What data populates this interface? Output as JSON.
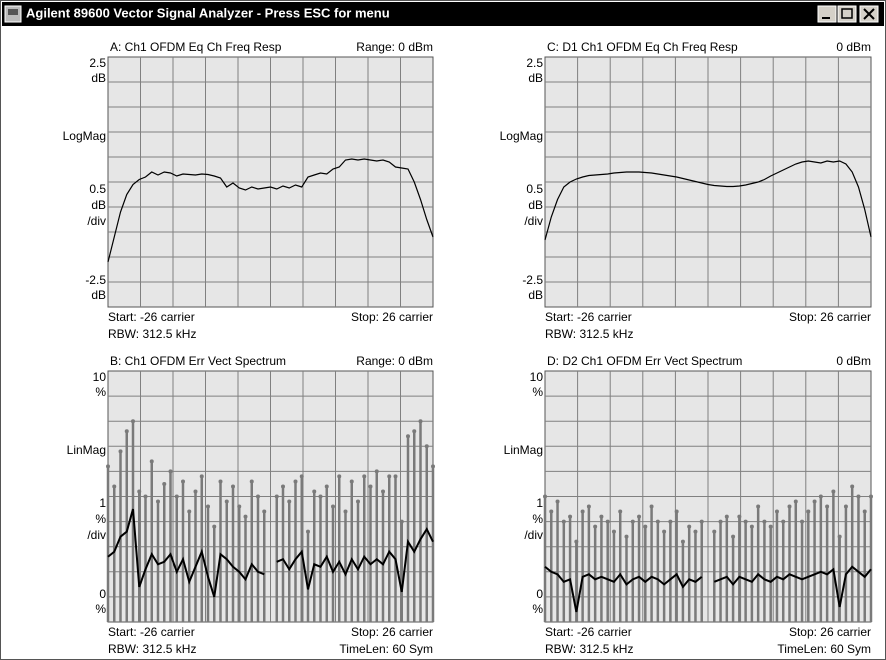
{
  "window": {
    "title": "Agilent 89600 Vector Signal Analyzer - Press ESC for menu"
  },
  "panels": [
    {
      "title": "A: Ch1 OFDM Eq Ch Freq Resp",
      "range": "Range: 0 dBm",
      "y_top": [
        "2.5",
        "dB"
      ],
      "y_format": "LogMag",
      "y_scale": [
        "0.5",
        "dB",
        "/div"
      ],
      "y_bottom": [
        "-2.5",
        "dB"
      ],
      "start": "Start: -26  carrier",
      "stop": "Stop: 26  carrier",
      "rbw": "RBW: 312.5 kHz",
      "xlim": [
        -26,
        26
      ],
      "ylim": [
        -2.5,
        2.5
      ],
      "trace": [
        -1.6,
        -1.1,
        -0.6,
        -0.25,
        -0.05,
        0.05,
        0.1,
        0.2,
        0.14,
        0.2,
        0.18,
        0.12,
        0.16,
        0.15,
        0.14,
        0.16,
        0.15,
        0.12,
        0.08,
        -0.1,
        -0.02,
        -0.12,
        -0.16,
        -0.1,
        -0.14,
        -0.12,
        -0.1,
        -0.14,
        -0.08,
        -0.12,
        -0.06,
        -0.1,
        0.1,
        0.14,
        0.18,
        0.16,
        0.26,
        0.3,
        0.44,
        0.46,
        0.44,
        0.46,
        0.44,
        0.42,
        0.44,
        0.4,
        0.3,
        0.28,
        0.26,
        0.0,
        -0.35,
        -0.75,
        -1.1
      ]
    },
    {
      "title": "C: D1 Ch1 OFDM Eq Ch Freq Resp",
      "range": "0 dBm",
      "y_top": [
        "2.5",
        "dB"
      ],
      "y_format": "LogMag",
      "y_scale": [
        "0.5",
        "dB",
        "/div"
      ],
      "y_bottom": [
        "-2.5",
        "dB"
      ],
      "start": "Start: -26  carrier",
      "stop": "Stop: 26  carrier",
      "rbw": "RBW: 312.5 kHz",
      "xlim": [
        -26,
        26
      ],
      "ylim": [
        -2.5,
        2.5
      ],
      "trace": [
        -1.16,
        -0.7,
        -0.35,
        -0.1,
        0.0,
        0.06,
        0.1,
        0.13,
        0.14,
        0.15,
        0.16,
        0.18,
        0.19,
        0.2,
        0.2,
        0.2,
        0.19,
        0.18,
        0.16,
        0.14,
        0.12,
        0.1,
        0.07,
        0.04,
        0.01,
        -0.02,
        -0.05,
        -0.07,
        -0.08,
        -0.09,
        -0.09,
        -0.08,
        -0.06,
        -0.03,
        0.0,
        0.05,
        0.12,
        0.18,
        0.24,
        0.3,
        0.36,
        0.4,
        0.42,
        0.4,
        0.38,
        0.42,
        0.4,
        0.42,
        0.36,
        0.2,
        -0.1,
        -0.55,
        -1.1
      ]
    },
    {
      "title": "B: Ch1 OFDM Err Vect Spectrum",
      "range": "Range: 0 dBm",
      "y_top": [
        "10",
        "%"
      ],
      "y_format": "LinMag",
      "y_scale": [
        "1",
        "%",
        "/div"
      ],
      "y_bottom": [
        "0",
        "%"
      ],
      "start": "Start: -26  carrier",
      "stop": "Stop: 26  carrier",
      "rbw": "RBW: 312.5 kHz",
      "timelen": "TimeLen: 60  Sym",
      "xlim": [
        -26,
        26
      ],
      "ylim": [
        0,
        10
      ],
      "trace": [
        2.6,
        2.8,
        3.4,
        3.6,
        4.5,
        1.4,
        2.1,
        2.7,
        2.3,
        2.4,
        2.7,
        2.0,
        2.5,
        1.6,
        2.2,
        2.8,
        1.8,
        1.0,
        2.7,
        2.5,
        2.2,
        2.0,
        1.7,
        2.3,
        2.0,
        1.9,
        null,
        2.4,
        2.5,
        2.1,
        2.5,
        2.8,
        1.3,
        2.3,
        2.2,
        2.6,
        2.0,
        2.4,
        1.9,
        2.5,
        2.1,
        2.6,
        2.3,
        2.5,
        2.3,
        2.8,
        2.5,
        1.2,
        3.2,
        2.8,
        3.3,
        3.7,
        3.2
      ],
      "peak": [
        6.2,
        5.4,
        6.8,
        7.6,
        8.0,
        5.2,
        5.0,
        6.4,
        4.8,
        5.5,
        6.0,
        5.0,
        5.6,
        4.4,
        5.2,
        5.8,
        4.6,
        3.8,
        5.6,
        4.8,
        5.4,
        4.6,
        4.2,
        5.6,
        5.0,
        4.4,
        null,
        5.0,
        5.4,
        4.8,
        5.6,
        5.8,
        3.6,
        5.2,
        5.0,
        5.4,
        4.6,
        5.8,
        4.4,
        5.6,
        4.8,
        5.8,
        5.4,
        6.0,
        5.2,
        5.8,
        5.8,
        4.0,
        7.4,
        7.6,
        8.0,
        7.0,
        6.2
      ]
    },
    {
      "title": "D: D2 Ch1 OFDM Err Vect Spectrum",
      "range": "0 dBm",
      "y_top": [
        "10",
        "%"
      ],
      "y_format": "LinMag",
      "y_scale": [
        "1",
        "%",
        "/div"
      ],
      "y_bottom": [
        "0",
        "%"
      ],
      "start": "Start: -26  carrier",
      "stop": "Stop: 26  carrier",
      "rbw": "RBW: 312.5 kHz",
      "timelen": "TimeLen: 60  Sym",
      "xlim": [
        -26,
        26
      ],
      "ylim": [
        0,
        10
      ],
      "trace": [
        2.2,
        2.0,
        1.9,
        1.6,
        1.7,
        0.4,
        1.8,
        1.9,
        1.7,
        1.8,
        1.7,
        1.6,
        1.9,
        1.5,
        1.7,
        1.8,
        1.6,
        1.8,
        1.7,
        1.5,
        1.7,
        1.9,
        1.4,
        1.7,
        1.6,
        1.8,
        null,
        1.6,
        1.7,
        1.8,
        1.5,
        1.8,
        1.7,
        1.6,
        1.9,
        1.7,
        1.6,
        1.8,
        1.7,
        1.9,
        1.8,
        1.7,
        1.8,
        1.9,
        2.0,
        1.9,
        2.1,
        0.6,
        1.9,
        2.2,
        2.0,
        1.8,
        2.1
      ],
      "peak": [
        5.0,
        4.4,
        4.8,
        4.0,
        4.2,
        3.2,
        4.4,
        4.6,
        3.8,
        4.2,
        4.0,
        3.6,
        4.4,
        3.4,
        4.0,
        4.2,
        3.8,
        4.6,
        4.0,
        3.6,
        4.0,
        4.4,
        3.2,
        3.8,
        3.6,
        4.0,
        null,
        3.6,
        4.0,
        4.2,
        3.4,
        4.2,
        4.0,
        3.8,
        4.6,
        4.0,
        3.8,
        4.4,
        4.0,
        4.6,
        4.8,
        4.0,
        4.4,
        4.8,
        5.0,
        4.6,
        5.2,
        3.4,
        4.6,
        5.4,
        5.0,
        4.4,
        5.0
      ]
    }
  ]
}
